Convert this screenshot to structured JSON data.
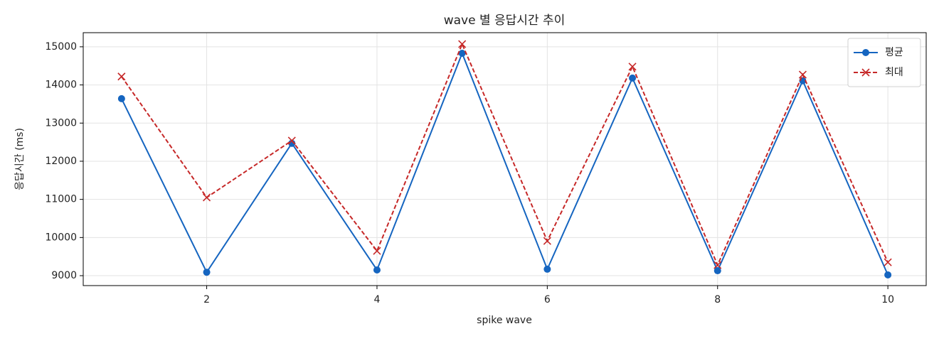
{
  "chart_data": {
    "type": "line",
    "title": "wave 별 응답시간 추이",
    "x_label": "spike wave",
    "y_label": "응답시간 (ms)",
    "x": [
      1,
      2,
      3,
      4,
      5,
      6,
      7,
      8,
      9,
      10
    ],
    "series": [
      {
        "name": "평균",
        "color": "#1565c0",
        "linestyle": "solid",
        "marker": "o",
        "values": [
          13640,
          9090,
          12470,
          9150,
          14830,
          9170,
          14180,
          9130,
          14110,
          9020
        ]
      },
      {
        "name": "최대",
        "color": "#c62828",
        "linestyle": "dashed",
        "marker": "x",
        "values": [
          14220,
          11050,
          12540,
          9650,
          15070,
          9910,
          14480,
          9280,
          14270,
          9350
        ]
      }
    ],
    "xlim": [
      0.55,
      10.45
    ],
    "ylim": [
      8740,
      15370
    ],
    "xticks": [
      2,
      4,
      6,
      8,
      10
    ],
    "yticks": [
      9000,
      10000,
      11000,
      12000,
      13000,
      14000,
      15000
    ],
    "grid": true,
    "legend": "upper right"
  }
}
